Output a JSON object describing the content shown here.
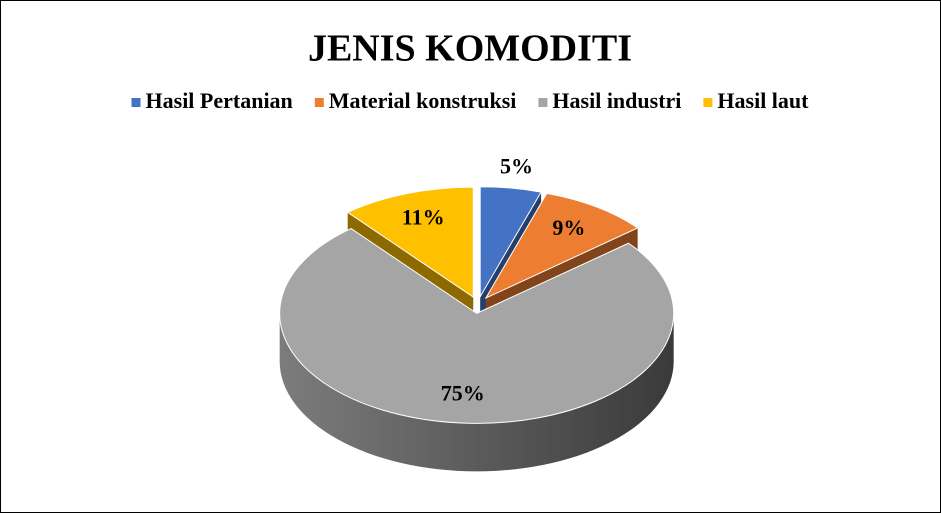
{
  "chart_data": {
    "type": "pie",
    "title": "JENIS KOMODITI",
    "categories": [
      "Hasil Pertanian",
      "Material konstruksi",
      "Hasil industri",
      "Hasil laut"
    ],
    "values": [
      5,
      9,
      75,
      11
    ],
    "value_labels": [
      "5%",
      "9%",
      "75%",
      "11%"
    ],
    "colors": [
      "#4472c4",
      "#ed7d31",
      "#a5a5a5",
      "#ffc000"
    ],
    "legend": "top"
  }
}
